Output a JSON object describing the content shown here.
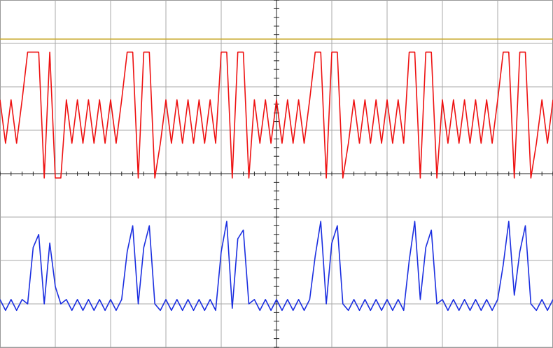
{
  "chart_data": {
    "type": "line",
    "x": [
      0,
      0.1,
      0.2,
      0.3,
      0.4,
      0.5,
      0.6,
      0.7,
      0.8,
      0.9,
      1,
      1.1,
      1.2,
      1.3,
      1.4,
      1.5,
      1.6,
      1.7,
      1.8,
      1.9,
      2,
      2.1,
      2.2,
      2.3,
      2.4,
      2.5,
      2.6,
      2.7,
      2.8,
      2.9,
      3,
      3.1,
      3.2,
      3.3,
      3.4,
      3.5,
      3.6,
      3.7,
      3.8,
      3.9,
      4,
      4.1,
      4.2,
      4.3,
      4.4,
      4.5,
      4.6,
      4.7,
      4.8,
      4.9,
      5,
      5.1,
      5.2,
      5.3,
      5.4,
      5.5,
      5.6,
      5.7,
      5.8,
      5.9,
      6,
      6.1,
      6.2,
      6.3,
      6.4,
      6.5,
      6.6,
      6.7,
      6.8,
      6.9,
      7,
      7.1,
      7.2,
      7.3,
      7.4,
      7.5,
      7.6,
      7.7,
      7.8,
      7.9,
      8,
      8.1,
      8.2,
      8.3,
      8.4,
      8.5,
      8.6,
      8.7,
      8.8,
      8.9,
      9,
      9.1,
      9.2,
      9.3,
      9.4,
      9.5,
      9.6,
      9.7,
      9.8,
      9.9,
      10
    ],
    "series": [
      {
        "color": "#c8a828",
        "values": [
          3.1,
          3.1,
          3.1,
          3.1,
          3.1,
          3.1,
          3.1,
          3.1,
          3.1,
          3.1,
          3.1,
          3.1,
          3.1,
          3.1,
          3.1,
          3.1,
          3.1,
          3.1,
          3.1,
          3.1,
          3.1,
          3.1,
          3.1,
          3.1,
          3.1,
          3.1,
          3.1,
          3.1,
          3.1,
          3.1,
          3.1,
          3.1,
          3.1,
          3.1,
          3.1,
          3.1,
          3.1,
          3.1,
          3.1,
          3.1,
          3.1,
          3.1,
          3.1,
          3.1,
          3.1,
          3.1,
          3.1,
          3.1,
          3.1,
          3.1,
          3.1,
          3.1,
          3.1,
          3.1,
          3.1,
          3.1,
          3.1,
          3.1,
          3.1,
          3.1,
          3.1,
          3.1,
          3.1,
          3.1,
          3.1,
          3.1,
          3.1,
          3.1,
          3.1,
          3.1,
          3.1,
          3.1,
          3.1,
          3.1,
          3.1,
          3.1,
          3.1,
          3.1,
          3.1,
          3.1,
          3.1,
          3.1,
          3.1,
          3.1,
          3.1,
          3.1,
          3.1,
          3.1,
          3.1,
          3.1,
          3.1,
          3.1,
          3.1,
          3.1,
          3.1,
          3.1,
          3.1,
          3.1,
          3.1,
          3.1,
          3.1
        ]
      },
      {
        "color": "#ee1111",
        "values": [
          1.7,
          0.7,
          1.7,
          0.7,
          1.7,
          2.8,
          2.8,
          2.8,
          -0.1,
          2.8,
          -0.1,
          -0.1,
          1.7,
          0.7,
          1.7,
          0.7,
          1.7,
          0.7,
          1.7,
          0.7,
          1.7,
          0.7,
          1.7,
          2.8,
          2.8,
          -0.1,
          2.8,
          2.8,
          -0.1,
          0.7,
          1.7,
          0.7,
          1.7,
          0.7,
          1.7,
          0.7,
          1.7,
          0.7,
          1.7,
          0.7,
          2.8,
          2.8,
          -0.1,
          2.8,
          2.8,
          -0.1,
          1.7,
          0.7,
          1.7,
          0.7,
          1.7,
          0.7,
          1.7,
          0.7,
          1.7,
          0.7,
          1.7,
          2.8,
          2.8,
          -0.1,
          2.8,
          2.8,
          -0.1,
          0.7,
          1.7,
          0.7,
          1.7,
          0.7,
          1.7,
          0.7,
          1.7,
          0.7,
          1.7,
          0.7,
          2.8,
          2.8,
          -0.1,
          2.8,
          2.8,
          -0.1,
          1.7,
          0.7,
          1.7,
          0.7,
          1.7,
          0.7,
          1.7,
          0.7,
          1.7,
          0.7,
          1.7,
          2.8,
          2.8,
          -0.1,
          2.8,
          2.8,
          -0.1,
          0.7,
          1.7,
          0.7,
          1.7
        ]
      },
      {
        "color": "#1a2ee0",
        "values": [
          -2.9,
          -3.15,
          -2.9,
          -3.15,
          -2.9,
          -3.0,
          -1.7,
          -1.4,
          -3.0,
          -1.6,
          -2.6,
          -3.0,
          -2.9,
          -3.15,
          -2.9,
          -3.15,
          -2.9,
          -3.15,
          -2.9,
          -3.15,
          -2.9,
          -3.15,
          -2.9,
          -1.8,
          -1.2,
          -3.0,
          -1.7,
          -1.2,
          -3.0,
          -3.15,
          -2.9,
          -3.15,
          -2.9,
          -3.15,
          -2.9,
          -3.15,
          -2.9,
          -3.15,
          -2.9,
          -3.15,
          -1.8,
          -1.1,
          -3.1,
          -1.5,
          -1.3,
          -3.0,
          -2.9,
          -3.15,
          -2.9,
          -3.15,
          -2.9,
          -3.15,
          -2.9,
          -3.15,
          -2.9,
          -3.15,
          -2.9,
          -1.9,
          -1.1,
          -3.0,
          -1.6,
          -1.2,
          -3.0,
          -3.15,
          -2.9,
          -3.15,
          -2.9,
          -3.15,
          -2.9,
          -3.15,
          -2.9,
          -3.15,
          -2.9,
          -3.15,
          -2.0,
          -1.1,
          -2.9,
          -1.7,
          -1.3,
          -3.0,
          -2.9,
          -3.15,
          -2.9,
          -3.15,
          -2.9,
          -3.15,
          -2.9,
          -3.15,
          -2.9,
          -3.15,
          -2.9,
          -2.1,
          -1.1,
          -2.8,
          -1.8,
          -1.2,
          -3.0,
          -3.15,
          -2.9,
          -3.15,
          -2.9
        ]
      }
    ],
    "xlim": [
      0,
      10
    ],
    "ylim": [
      -4,
      4
    ],
    "xticks": [
      0,
      1,
      2,
      3,
      4,
      5,
      6,
      7,
      8,
      9,
      10
    ],
    "yticks": [
      -4,
      -3,
      -2,
      -1,
      0,
      1,
      2,
      3,
      4
    ],
    "grid": true
  }
}
